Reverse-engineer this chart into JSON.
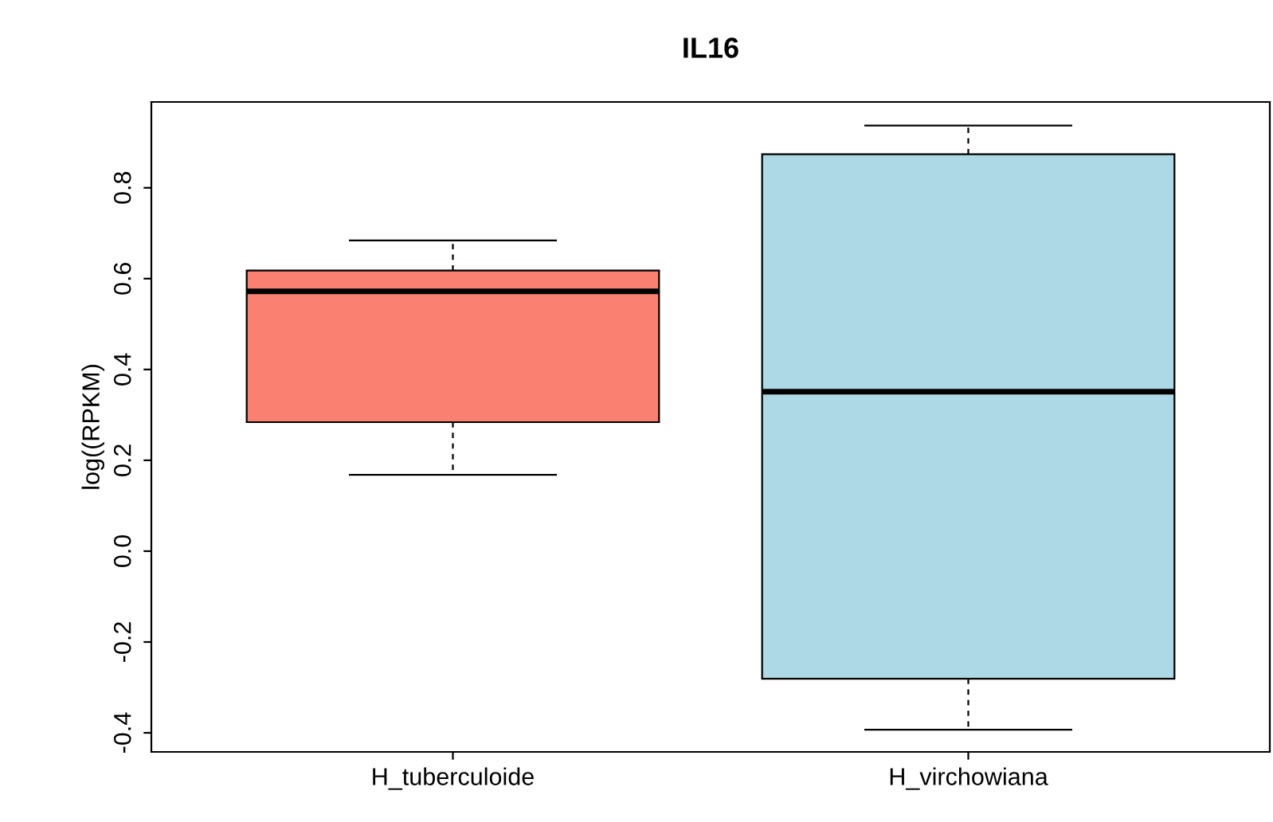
{
  "chart_data": {
    "type": "box",
    "title": "IL16",
    "ylabel": "log((RPKM)",
    "categories": [
      "H_tuberculoide",
      "H_virchowiana"
    ],
    "colors": [
      "#fa8072",
      "#add8e6"
    ],
    "boxes": [
      {
        "low": 0.168,
        "q1": 0.284,
        "median": 0.572,
        "q3": 0.618,
        "high": 0.684
      },
      {
        "low": -0.393,
        "q1": -0.281,
        "median": 0.351,
        "q3": 0.874,
        "high": 0.937
      }
    ],
    "ylim": [
      -0.442,
      0.989
    ],
    "yticks": [
      -0.4,
      -0.2,
      {
        "value": 0,
        "label": "0.0"
      },
      0.2,
      0.4,
      0.6,
      0.8
    ],
    "grid": false
  }
}
